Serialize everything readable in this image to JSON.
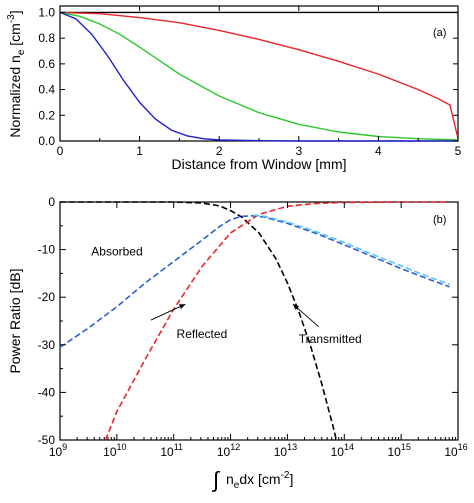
{
  "chart_data": [
    {
      "type": "line",
      "panel_label": "(a)",
      "xlabel": "Distance from Window [mm]",
      "ylabel_main": "Normalized n",
      "ylabel_sub": "e",
      "ylabel_unit_pre": " [cm",
      "ylabel_unit_sup": "-3",
      "ylabel_unit_post": "]",
      "xlim": [
        0,
        5
      ],
      "ylim": [
        0,
        1.05
      ],
      "xticks": [
        0,
        1,
        2,
        3,
        4,
        5
      ],
      "xtick_labels": [
        "0",
        "1",
        "2",
        "3",
        "4",
        "5"
      ],
      "yticks": [
        0,
        0.2,
        0.4,
        0.6,
        0.8,
        1.0
      ],
      "ytick_labels": [
        "0.0",
        "0.2",
        "0.4",
        "0.6",
        "0.8",
        "1.0"
      ],
      "series": [
        {
          "color": "#000000",
          "x": [
            0,
            5
          ],
          "y": [
            1.0,
            1.0
          ]
        },
        {
          "color": "#e8262b",
          "x": [
            0,
            0.5,
            1,
            1.5,
            2,
            2.5,
            3,
            3.5,
            4,
            4.5,
            4.75,
            4.9,
            5
          ],
          "y": [
            1.0,
            0.99,
            0.96,
            0.92,
            0.86,
            0.79,
            0.71,
            0.62,
            0.52,
            0.4,
            0.33,
            0.28,
            0.02
          ]
        },
        {
          "color": "#2ec82e",
          "x": [
            0,
            0.25,
            0.5,
            0.75,
            1,
            1.5,
            2,
            2.5,
            3,
            3.5,
            4,
            4.5,
            5
          ],
          "y": [
            1.0,
            0.97,
            0.91,
            0.83,
            0.73,
            0.52,
            0.35,
            0.22,
            0.13,
            0.07,
            0.035,
            0.018,
            0.008
          ]
        },
        {
          "color": "#2020c8",
          "x": [
            0,
            0.2,
            0.4,
            0.6,
            0.8,
            1.0,
            1.2,
            1.4,
            1.6,
            1.8,
            2.0,
            2.5,
            3,
            4,
            5
          ],
          "y": [
            1.0,
            0.95,
            0.83,
            0.66,
            0.47,
            0.3,
            0.17,
            0.085,
            0.04,
            0.018,
            0.008,
            0.002,
            0.0,
            0.0,
            0.0
          ]
        }
      ]
    },
    {
      "type": "line",
      "panel_label": "(b)",
      "xlabel_main": "n",
      "xlabel_sub": "e",
      "xlabel_post": "dx [cm",
      "xlabel_sup": "-2",
      "xlabel_end": "]",
      "ylabel": "Power Ratio [dB]",
      "xscale": "log",
      "xlim": [
        9,
        16
      ],
      "ylim": [
        -50,
        0
      ],
      "xtick_exponents": [
        9,
        10,
        11,
        12,
        13,
        14,
        15,
        16
      ],
      "yticks": [
        0,
        -10,
        -20,
        -30,
        -40,
        -50
      ],
      "ytick_labels": [
        "0",
        "-10",
        "-20",
        "-30",
        "-40",
        "-50"
      ],
      "annotations": [
        {
          "text": "Absorbed",
          "x": 9.55,
          "y": -11.2
        },
        {
          "text": "Reflected",
          "x": 11.05,
          "y": -28.6
        },
        {
          "text": "Transmitted",
          "x": 13.2,
          "y": -29.6
        }
      ],
      "series": [
        {
          "color": "#000000",
          "dash": true,
          "x": [
            9,
            10,
            10.5,
            11,
            11.5,
            11.8,
            12,
            12.2,
            12.5,
            12.8,
            13,
            13.2,
            13.4,
            13.6,
            13.8,
            13.86
          ],
          "y": [
            0,
            0,
            0,
            0,
            -0.2,
            -0.8,
            -1.8,
            -3.2,
            -6.5,
            -12,
            -17,
            -23,
            -30,
            -38,
            -47,
            -50
          ]
        },
        {
          "color": "#e8262b",
          "dash": true,
          "x": [
            9.8,
            10,
            10.5,
            11,
            11.5,
            12,
            12.5,
            13,
            13.5,
            14,
            15,
            15.85
          ],
          "y": [
            -50,
            -44,
            -33,
            -22.5,
            -13.5,
            -6.5,
            -2.6,
            -0.9,
            -0.3,
            -0.1,
            0,
            0
          ]
        },
        {
          "color": "#2a5fd6",
          "dash": true,
          "x": [
            9,
            9.5,
            10,
            10.5,
            11,
            11.5,
            11.8,
            12,
            12.2,
            12.4,
            12.6,
            13,
            13.5,
            14,
            14.5,
            15,
            15.5,
            15.85
          ],
          "y": [
            -30.5,
            -26.5,
            -22,
            -17,
            -12.5,
            -8,
            -5.2,
            -3.7,
            -3.0,
            -2.9,
            -3.2,
            -4.5,
            -6.6,
            -9,
            -11.5,
            -14,
            -16.3,
            -17.8
          ]
        },
        {
          "color": "#5cc3e8",
          "dash": true,
          "x": [
            12.4,
            12.6,
            13,
            13.5,
            14,
            14.5,
            15,
            15.5,
            15.85
          ],
          "y": [
            -2.8,
            -3.0,
            -4.2,
            -6.2,
            -8.5,
            -11,
            -13.4,
            -15.8,
            -17.3
          ]
        }
      ]
    }
  ]
}
